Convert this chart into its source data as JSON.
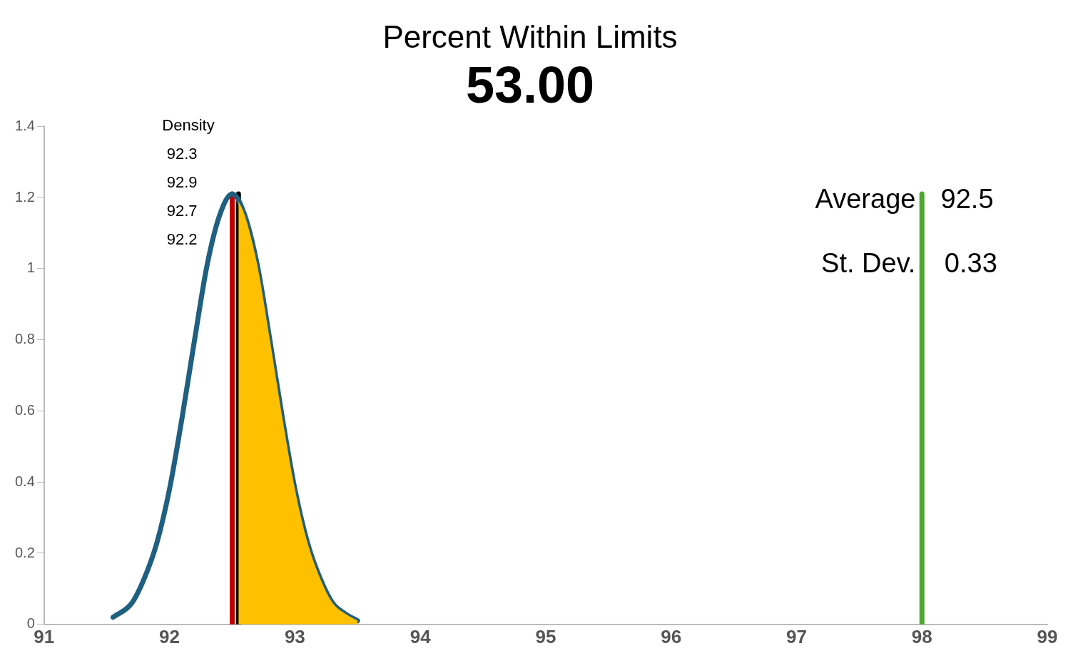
{
  "chart_data": {
    "type": "line",
    "title": "Percent Within Limits",
    "subtitle": "53.00",
    "xlim": [
      91,
      99
    ],
    "xticks": [
      91,
      92,
      93,
      94,
      95,
      96,
      97,
      98,
      99
    ],
    "ylim": [
      0,
      1.4
    ],
    "yticks": [
      0,
      0.2,
      0.4,
      0.6,
      0.8,
      1,
      1.2,
      1.4
    ],
    "grid": false,
    "legend": false,
    "marker": "none",
    "line_style": "solid",
    "series": [
      {
        "type": "area",
        "color": "#ffc000",
        "x": [
          92.55,
          92.6,
          92.7,
          92.8,
          92.9,
          93.0,
          93.1,
          93.2,
          93.3,
          93.4,
          93.5
        ],
        "values": [
          1.19,
          1.15,
          1.01,
          0.8,
          0.58,
          0.38,
          0.23,
          0.13,
          0.06,
          0.03,
          0.01
        ]
      },
      {
        "type": "line",
        "color": "#1f5f7f",
        "x": [
          91.55,
          91.7,
          91.8,
          91.9,
          92.0,
          92.1,
          92.2,
          92.3,
          92.4,
          92.5,
          92.6,
          92.7,
          92.8,
          92.9,
          93.0,
          93.1,
          93.2,
          93.3,
          93.4,
          93.5
        ],
        "values": [
          0.02,
          0.06,
          0.13,
          0.23,
          0.38,
          0.58,
          0.8,
          1.01,
          1.15,
          1.21,
          1.15,
          1.01,
          0.8,
          0.58,
          0.38,
          0.23,
          0.13,
          0.06,
          0.03,
          0.01
        ]
      },
      {
        "type": "line",
        "color": "#c00000",
        "x": [
          92.5,
          92.5
        ],
        "values": [
          0,
          1.21
        ]
      },
      {
        "type": "line",
        "color": "#000000",
        "x": [
          92.55,
          92.55
        ],
        "values": [
          0,
          1.21
        ]
      },
      {
        "type": "line",
        "color": "#4ea72e",
        "x": [
          98,
          98
        ],
        "values": [
          0,
          1.21
        ]
      }
    ],
    "annotations": [
      "Density",
      "92.3",
      "92.9",
      "92.7",
      "92.2",
      "Average",
      "92.5",
      "St. Dev.",
      "0.33"
    ]
  }
}
